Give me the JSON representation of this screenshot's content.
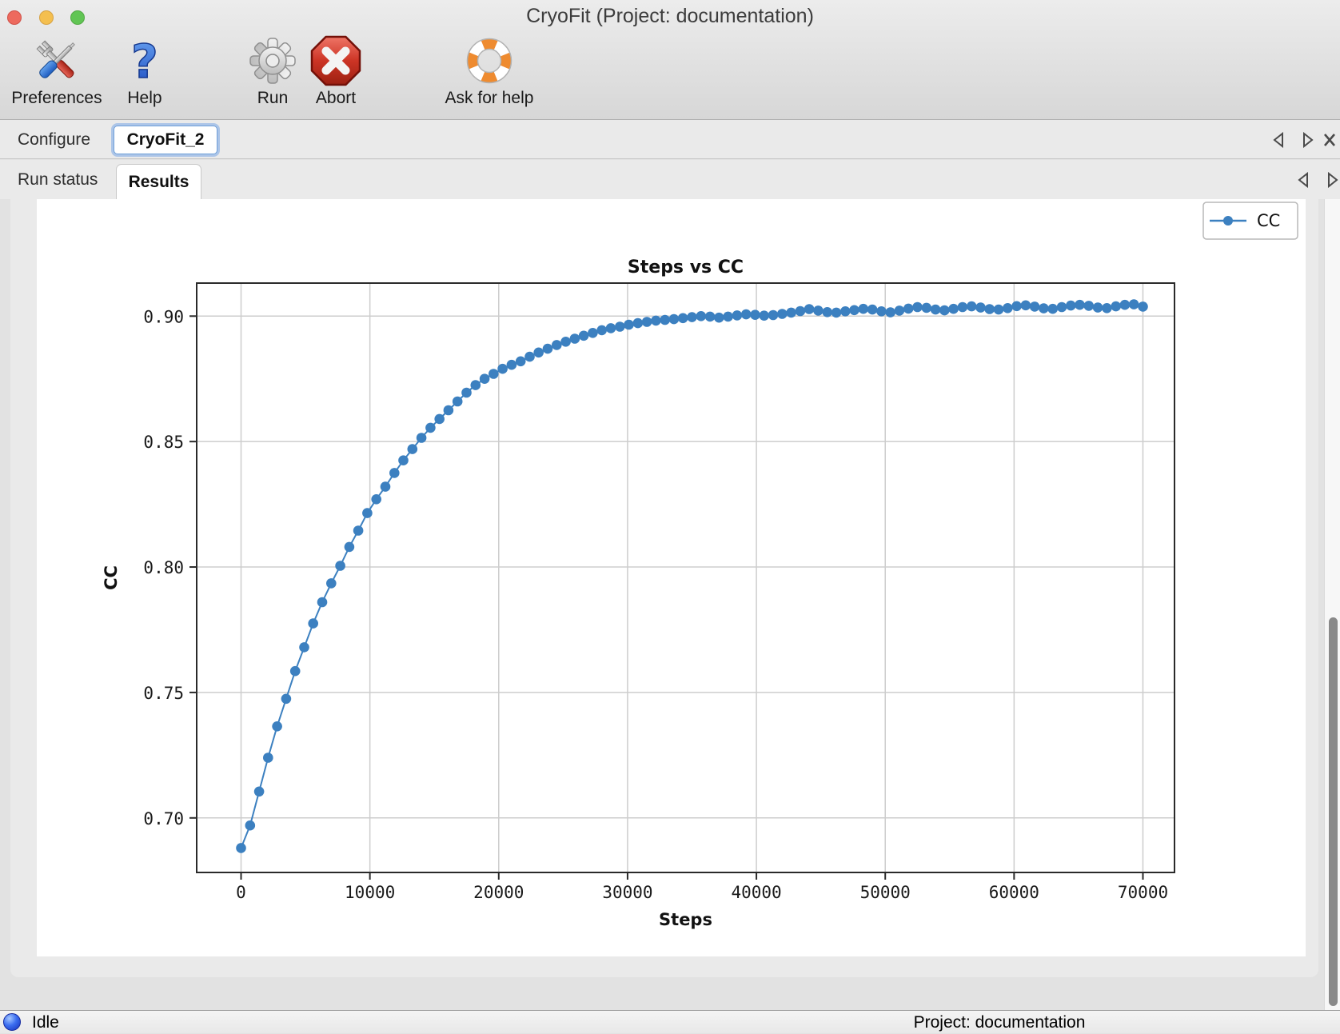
{
  "window": {
    "title": "CryoFit (Project: documentation)"
  },
  "toolbar": {
    "items": [
      {
        "label": "Preferences",
        "icon": "tools-icon"
      },
      {
        "label": "Help",
        "icon": "question-icon"
      },
      {
        "label": "Run",
        "icon": "gear-icon"
      },
      {
        "label": "Abort",
        "icon": "abort-icon"
      },
      {
        "label": "Ask for help",
        "icon": "life-ring-icon"
      }
    ]
  },
  "tabs": {
    "row1": [
      {
        "label": "Configure",
        "active": false
      },
      {
        "label": "CryoFit_2",
        "active": true
      }
    ],
    "row2": [
      {
        "label": "Run status",
        "active": false
      },
      {
        "label": "Results",
        "active": true
      }
    ]
  },
  "status_bar": {
    "state": "Idle",
    "project": "Project: documentation"
  },
  "chart_data": {
    "type": "line",
    "title": "Steps vs CC",
    "xlabel": "Steps",
    "ylabel": "CC",
    "legend": [
      "CC"
    ],
    "legend_position": "upper right, outside axes",
    "grid": true,
    "x_ticks": [
      0,
      10000,
      20000,
      30000,
      40000,
      50000,
      60000,
      70000
    ],
    "y_ticks": [
      "0.90",
      "0.85",
      "0.80",
      "0.75",
      "0.70"
    ],
    "xlim": [
      -3450,
      72500
    ],
    "ylim": [
      0.676,
      0.914
    ],
    "marker": "circle",
    "line_color": "#3c80c0",
    "marker_color": "#3c80c0",
    "grid_color": "#cdcdcd",
    "frame_color": "#2a2a2a",
    "x_start": 0,
    "x_step": 700,
    "n_points": 101,
    "series": [
      {
        "name": "CC",
        "values": [
          0.688,
          0.697,
          0.7105,
          0.724,
          0.7365,
          0.7475,
          0.7585,
          0.768,
          0.7775,
          0.786,
          0.7935,
          0.8005,
          0.808,
          0.8145,
          0.8215,
          0.827,
          0.832,
          0.8375,
          0.8425,
          0.847,
          0.8515,
          0.8555,
          0.859,
          0.8625,
          0.866,
          0.8695,
          0.8725,
          0.875,
          0.877,
          0.879,
          0.8806,
          0.882,
          0.8838,
          0.8855,
          0.887,
          0.8885,
          0.8898,
          0.891,
          0.8922,
          0.8933,
          0.8944,
          0.8952,
          0.8958,
          0.8966,
          0.8972,
          0.8977,
          0.8982,
          0.8985,
          0.8988,
          0.8992,
          0.8996,
          0.9,
          0.8998,
          0.8994,
          0.8998,
          0.9003,
          0.9007,
          0.9005,
          0.9002,
          0.9004,
          0.9009,
          0.9014,
          0.902,
          0.9028,
          0.9022,
          0.9016,
          0.9014,
          0.9019,
          0.9024,
          0.9029,
          0.9026,
          0.9019,
          0.9015,
          0.9022,
          0.903,
          0.9036,
          0.9033,
          0.9026,
          0.9023,
          0.9029,
          0.9036,
          0.9039,
          0.9034,
          0.9028,
          0.9026,
          0.9032,
          0.904,
          0.9043,
          0.9038,
          0.9031,
          0.9029,
          0.9036,
          0.9042,
          0.9045,
          0.9041,
          0.9034,
          0.9032,
          0.9039,
          0.9045,
          0.9047,
          0.9038
        ]
      }
    ]
  }
}
